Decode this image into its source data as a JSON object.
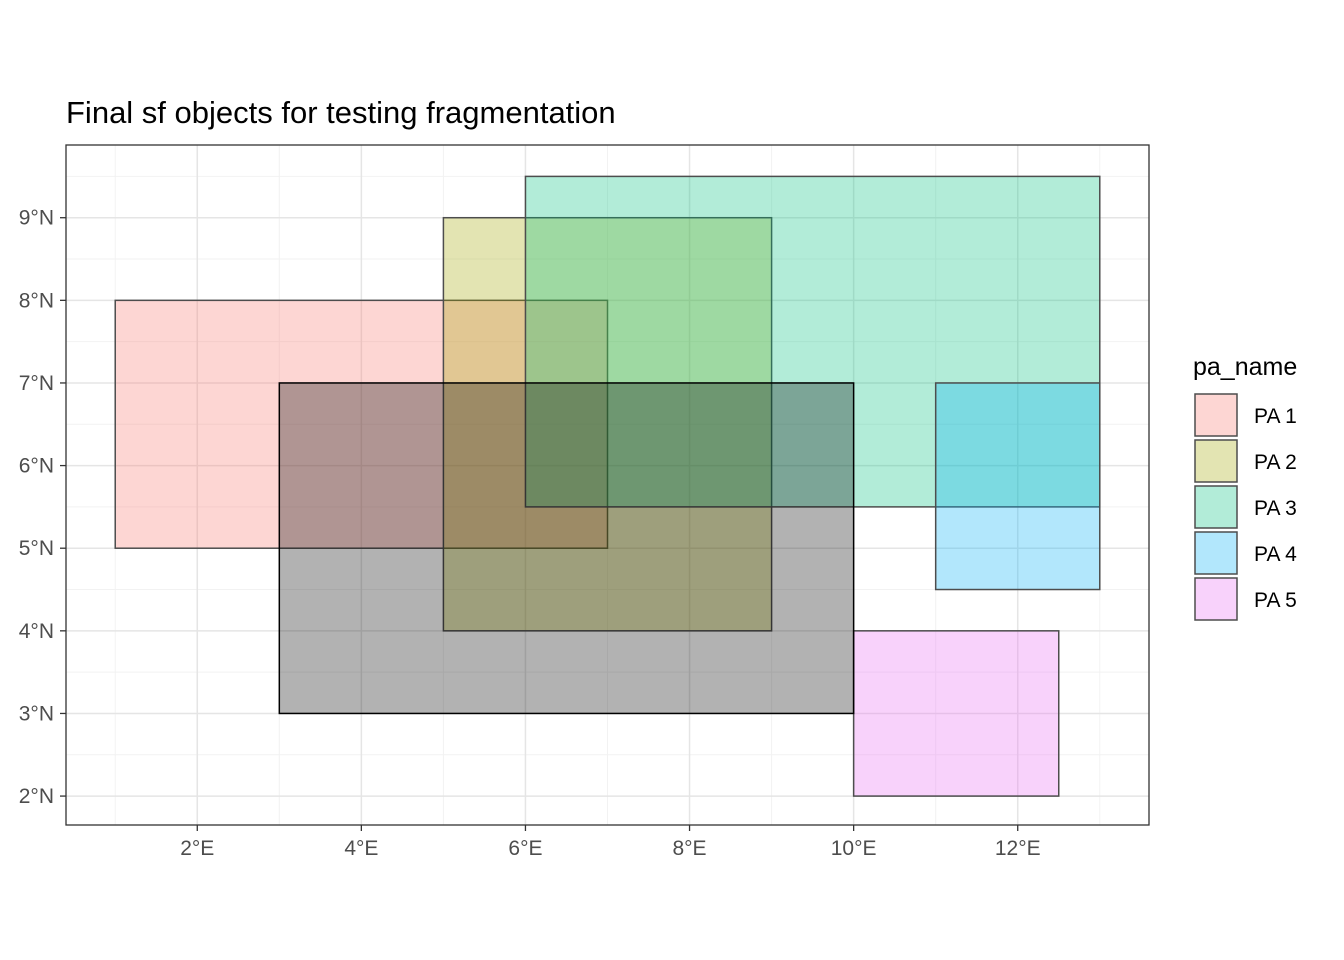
{
  "chart_data": {
    "type": "map",
    "title": "Final sf objects for testing fragmentation",
    "xlabel": "",
    "ylabel": "",
    "xlim": [
      0.4,
      13.6
    ],
    "ylim": [
      1.65,
      9.88
    ],
    "x_ticks": [
      {
        "value": 2,
        "label": "2°E"
      },
      {
        "value": 4,
        "label": "4°E"
      },
      {
        "value": 6,
        "label": "6°E"
      },
      {
        "value": 8,
        "label": "8°E"
      },
      {
        "value": 10,
        "label": "10°E"
      },
      {
        "value": 12,
        "label": "12°E"
      }
    ],
    "y_ticks": [
      {
        "value": 2,
        "label": "2°N"
      },
      {
        "value": 3,
        "label": "3°N"
      },
      {
        "value": 4,
        "label": "4°N"
      },
      {
        "value": 5,
        "label": "5°N"
      },
      {
        "value": 6,
        "label": "6°N"
      },
      {
        "value": 7,
        "label": "7°N"
      },
      {
        "value": 8,
        "label": "8°N"
      },
      {
        "value": 9,
        "label": "9°N"
      }
    ],
    "grid": true,
    "legend": {
      "title": "pa_name",
      "position": "right",
      "entries": [
        {
          "label": "PA 1",
          "color": "#F8766D"
        },
        {
          "label": "PA 2",
          "color": "#A3A500"
        },
        {
          "label": "PA 3",
          "color": "#00BF7D"
        },
        {
          "label": "PA 4",
          "color": "#00B0F6"
        },
        {
          "label": "PA 5",
          "color": "#E76BF3"
        }
      ]
    },
    "polygons": [
      {
        "name": "PA 1",
        "xmin": 1,
        "xmax": 7,
        "ymin": 5,
        "ymax": 8,
        "fill": "#F8766D",
        "alpha": 0.3
      },
      {
        "name": "PA 2",
        "xmin": 5,
        "xmax": 9,
        "ymin": 4,
        "ymax": 9,
        "fill": "#A3A500",
        "alpha": 0.3
      },
      {
        "name": "PA 3",
        "xmin": 6,
        "xmax": 13,
        "ymin": 5.5,
        "ymax": 9.5,
        "fill": "#00BF7D",
        "alpha": 0.3
      },
      {
        "name": "PA 4",
        "xmin": 11,
        "xmax": 13,
        "ymin": 4.5,
        "ymax": 7,
        "fill": "#00B0F6",
        "alpha": 0.3
      },
      {
        "name": "PA 5",
        "xmin": 10,
        "xmax": 12.5,
        "ymin": 2,
        "ymax": 4,
        "fill": "#E76BF3",
        "alpha": 0.3
      },
      {
        "name": "",
        "xmin": 3,
        "xmax": 10,
        "ymin": 3,
        "ymax": 7,
        "fill": "#000000",
        "alpha": 0.3
      }
    ]
  }
}
